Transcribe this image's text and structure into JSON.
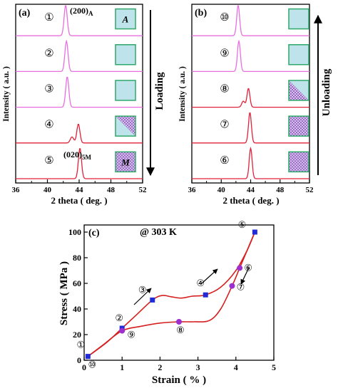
{
  "colors": {
    "loading_pink": "#e86fe0",
    "loaded_red": "#e0223a",
    "austenite_fill": "#bfe3ea",
    "frame_green": "#2ea86a",
    "martensite_pattern": "#9a66c4",
    "curve_red": "#d62020",
    "point_blue": "#1f2bd8",
    "point_purple": "#9b2fd0"
  },
  "chart_data": [
    {
      "panel": "(a)",
      "type": "line",
      "xlabel": "2 theta ( deg. )",
      "ylabel": "Intensity ( a.u. )",
      "xlim": [
        36,
        52
      ],
      "xticks": [
        "36",
        "40",
        "44",
        "48",
        "52"
      ],
      "side_label": "Loading",
      "annotations": {
        "peak_a": "(200)",
        "peak_a_sub": "A",
        "peak_m": "(020)",
        "peak_m_sub": "5M"
      },
      "series": [
        {
          "name": "①",
          "peak_2theta": 42.3,
          "phase_box": "A",
          "phase": "austenite",
          "shoulder": null
        },
        {
          "name": "②",
          "peak_2theta": 42.4,
          "phase_box": "",
          "phase": "austenite",
          "shoulder": null
        },
        {
          "name": "③",
          "peak_2theta": 42.5,
          "phase_box": "",
          "phase": "austenite",
          "shoulder": null
        },
        {
          "name": "④",
          "peak_2theta": 43.9,
          "phase_box": "",
          "phase": "mixed",
          "shoulder": 43.1
        },
        {
          "name": "⑤",
          "peak_2theta": 44.1,
          "phase_box": "M",
          "phase": "martensite",
          "shoulder": null
        }
      ]
    },
    {
      "panel": "(b)",
      "type": "line",
      "xlabel": "2 theta ( deg. )",
      "ylabel": "Intensity ( a.u. )",
      "xlim": [
        36,
        52
      ],
      "xticks": [
        "36",
        "40",
        "44",
        "48",
        "52"
      ],
      "side_label": "Unloading",
      "series": [
        {
          "name": "⑩",
          "peak_2theta": 42.3,
          "phase": "austenite",
          "shoulder": null
        },
        {
          "name": "⑨",
          "peak_2theta": 42.4,
          "phase": "austenite",
          "shoulder": null
        },
        {
          "name": "⑧",
          "peak_2theta": 43.7,
          "phase": "mixed",
          "shoulder": 43.0
        },
        {
          "name": "⑦",
          "peak_2theta": 43.9,
          "phase": "martensite",
          "shoulder": null
        },
        {
          "name": "⑥",
          "peak_2theta": 44.0,
          "phase": "martensite",
          "shoulder": null
        }
      ]
    },
    {
      "panel": "(c)",
      "type": "line",
      "title": "@ 303 K",
      "xlabel": "Strain ( % )",
      "ylabel": "Stress ( MPa )",
      "xlim": [
        0,
        5
      ],
      "ylim": [
        0,
        100
      ],
      "xticks": [
        "0",
        "1",
        "2",
        "3",
        "4",
        "5"
      ],
      "yticks": [
        "0",
        "20",
        "40",
        "60",
        "80",
        "100"
      ],
      "loading_points": [
        {
          "label": "①",
          "x": 0.1,
          "y": 3
        },
        {
          "label": "②",
          "x": 1.0,
          "y": 25
        },
        {
          "label": "③",
          "x": 1.8,
          "y": 47
        },
        {
          "label": "④",
          "x": 3.2,
          "y": 51
        },
        {
          "label": "⑤",
          "x": 4.5,
          "y": 100
        }
      ],
      "unloading_points": [
        {
          "label": "⑥",
          "x": 4.1,
          "y": 72
        },
        {
          "label": "⑦",
          "x": 3.9,
          "y": 58
        },
        {
          "label": "⑧",
          "x": 2.5,
          "y": 30
        },
        {
          "label": "⑨",
          "x": 1.0,
          "y": 23
        },
        {
          "label": "⑩",
          "x": 0.1,
          "y": 3
        }
      ],
      "loading_curve": [
        [
          0.1,
          3
        ],
        [
          0.6,
          14
        ],
        [
          1.0,
          25
        ],
        [
          1.4,
          36
        ],
        [
          1.8,
          47
        ],
        [
          2.05,
          50.5
        ],
        [
          2.3,
          49.5
        ],
        [
          2.55,
          48.5
        ],
        [
          2.85,
          50
        ],
        [
          3.2,
          51
        ],
        [
          3.6,
          57
        ],
        [
          4.0,
          70
        ],
        [
          4.3,
          86
        ],
        [
          4.5,
          100
        ]
      ],
      "unloading_curve": [
        [
          4.5,
          100
        ],
        [
          4.3,
          86
        ],
        [
          4.1,
          72
        ],
        [
          3.9,
          58
        ],
        [
          3.6,
          40
        ],
        [
          3.3,
          31
        ],
        [
          2.9,
          30
        ],
        [
          2.5,
          30
        ],
        [
          2.0,
          29
        ],
        [
          1.5,
          26.5
        ],
        [
          1.0,
          23
        ],
        [
          0.5,
          12
        ],
        [
          0.1,
          3
        ]
      ]
    }
  ]
}
